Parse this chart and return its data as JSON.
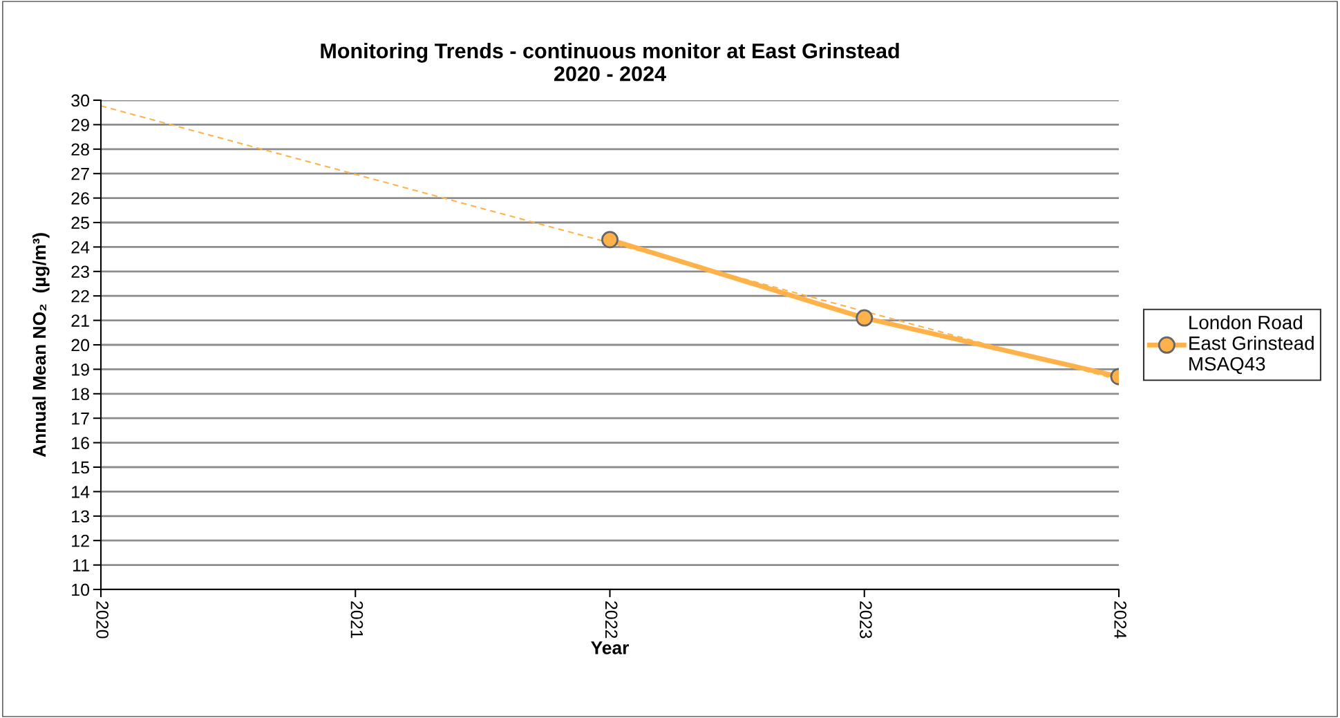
{
  "chart_data": {
    "type": "line",
    "title": "Monitoring Trends - continuous monitor at East Grinstead\n2020 - 2024",
    "xlabel": "Year",
    "ylabel": "Annual Mean NO₂  (µg/m³)",
    "x": [
      2022,
      2023,
      2024
    ],
    "series": [
      {
        "name": "London Road\nEast Grinstead\nMSAQ43",
        "color": "#ffb24a",
        "values": [
          24.3,
          21.1,
          18.7
        ],
        "marker": "circle",
        "line_style": "solid"
      },
      {
        "type": "line",
        "color": "#ffb24a",
        "x": [
          2020,
          2024
        ],
        "values": [
          29.77,
          18.57
        ],
        "marker": "none",
        "line_style": "dashed"
      }
    ],
    "xlim": [
      2020,
      2024
    ],
    "xticks": [
      2020,
      2021,
      2022,
      2023,
      2024
    ],
    "ylim": [
      10,
      30
    ],
    "yticks": [
      10,
      11,
      12,
      13,
      14,
      15,
      16,
      17,
      18,
      19,
      20,
      21,
      22,
      23,
      24,
      25,
      26,
      27,
      28,
      29,
      30
    ],
    "grid": "y",
    "legend": "right"
  }
}
